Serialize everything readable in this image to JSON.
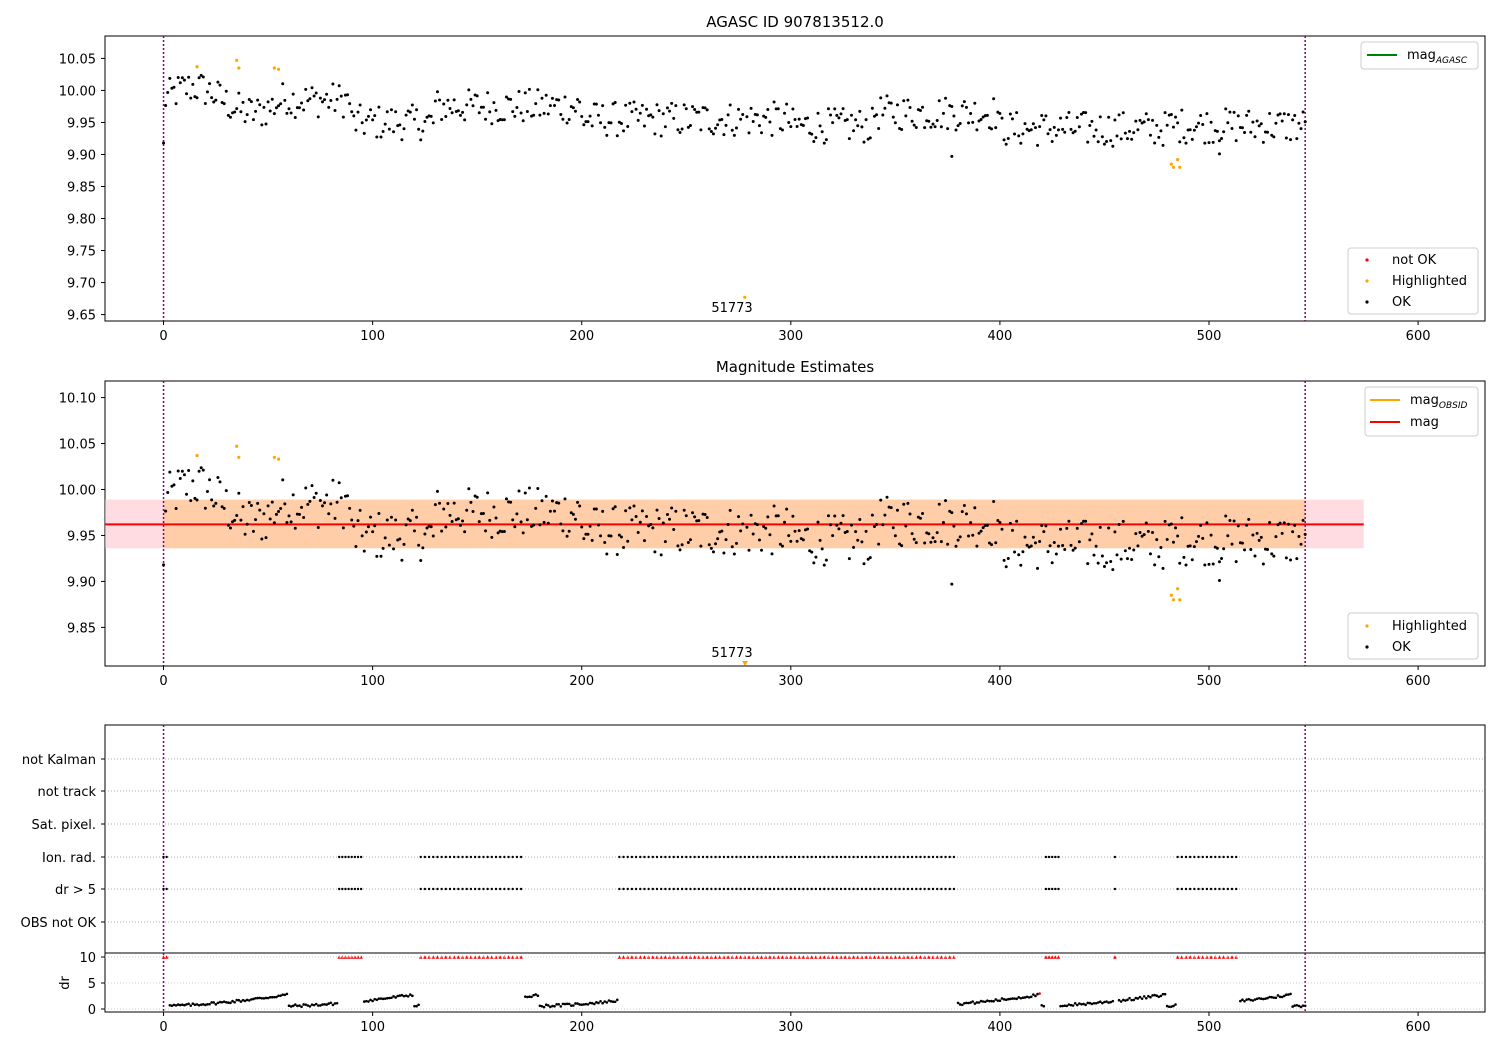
{
  "chart_data": [
    {
      "type": "scatter",
      "title": "AGASC ID 907813512.0",
      "xlim": [
        -28,
        632
      ],
      "ylim": [
        9.64,
        10.085
      ],
      "x_ticks": [
        0,
        100,
        200,
        300,
        400,
        500,
        600
      ],
      "y_ticks": [
        9.65,
        9.7,
        9.75,
        9.8,
        9.85,
        9.9,
        9.95,
        10.0,
        10.05
      ],
      "vlines": [
        0,
        546
      ],
      "mag_line_label": "mag",
      "mag_line_sub": "AGASC",
      "series": [
        {
          "name": "not OK",
          "color": "#ff0000",
          "x": [],
          "y": []
        },
        {
          "name": "Highlighted",
          "color": "#ffa500",
          "x": [
            16,
            35,
            36,
            53,
            55,
            278,
            482,
            483,
            485,
            486
          ],
          "y": [
            10.037,
            10.047,
            10.035,
            10.035,
            10.033,
            9.677,
            9.885,
            9.88,
            9.892,
            9.88
          ]
        },
        {
          "name": "OK",
          "color": "#000000",
          "points": "generated-black-points"
        }
      ],
      "annotations": [
        {
          "text": "51773",
          "x": 273,
          "y": 9.655
        }
      ],
      "legend_lines": "top-right",
      "legend_points": "bottom-right"
    },
    {
      "type": "scatter",
      "title": "Magnitude Estimates",
      "xlim": [
        -28,
        632
      ],
      "ylim": [
        9.808,
        10.118
      ],
      "x_ticks": [
        0,
        100,
        200,
        300,
        400,
        500,
        600
      ],
      "y_ticks": [
        9.85,
        9.9,
        9.95,
        10.0,
        10.05,
        10.1
      ],
      "vlines": [
        0,
        546
      ],
      "mag": 9.962,
      "band_outer": [
        9.936,
        9.989
      ],
      "band_inner": [
        9.936,
        9.989
      ],
      "band_xrange": [
        -28,
        574
      ],
      "line_legend": [
        {
          "label": "mag",
          "sub": "OBSID",
          "color": "#ffa500"
        },
        {
          "label": "mag",
          "sub": "",
          "color": "#ff0000"
        }
      ],
      "series": [
        {
          "name": "Highlighted",
          "color": "#ffa500",
          "x": [
            16,
            35,
            36,
            53,
            55,
            482,
            483,
            485,
            486
          ],
          "y": [
            10.037,
            10.047,
            10.035,
            10.035,
            10.033,
            9.885,
            9.88,
            9.892,
            9.88
          ]
        },
        {
          "name": "OK",
          "color": "#000000",
          "points": "generated-black-points"
        }
      ],
      "annotations": [
        {
          "text": "51773",
          "x": 273,
          "y": 9.815
        }
      ],
      "legend_points": "bottom-right"
    },
    {
      "type": "scatter",
      "xlim": [
        -28,
        632
      ],
      "x_ticks": [
        0,
        100,
        200,
        300,
        400,
        500,
        600
      ],
      "vlines": [
        0,
        546
      ],
      "flag_rows": [
        "not Kalman",
        "not track",
        "Sat. pixel.",
        "Ion. rad.",
        "dr > 5",
        "OBS not OK"
      ],
      "flag_ranges": [
        [
          0,
          2
        ],
        [
          84,
          95
        ],
        [
          123,
          172
        ],
        [
          218,
          379
        ],
        [
          422,
          428
        ],
        [
          455,
          456
        ],
        [
          485,
          514
        ]
      ],
      "dr_ylabel": "dr",
      "dr_ylim": [
        0,
        10
      ],
      "dr_y_ticks": [
        0,
        5,
        10
      ]
    }
  ]
}
